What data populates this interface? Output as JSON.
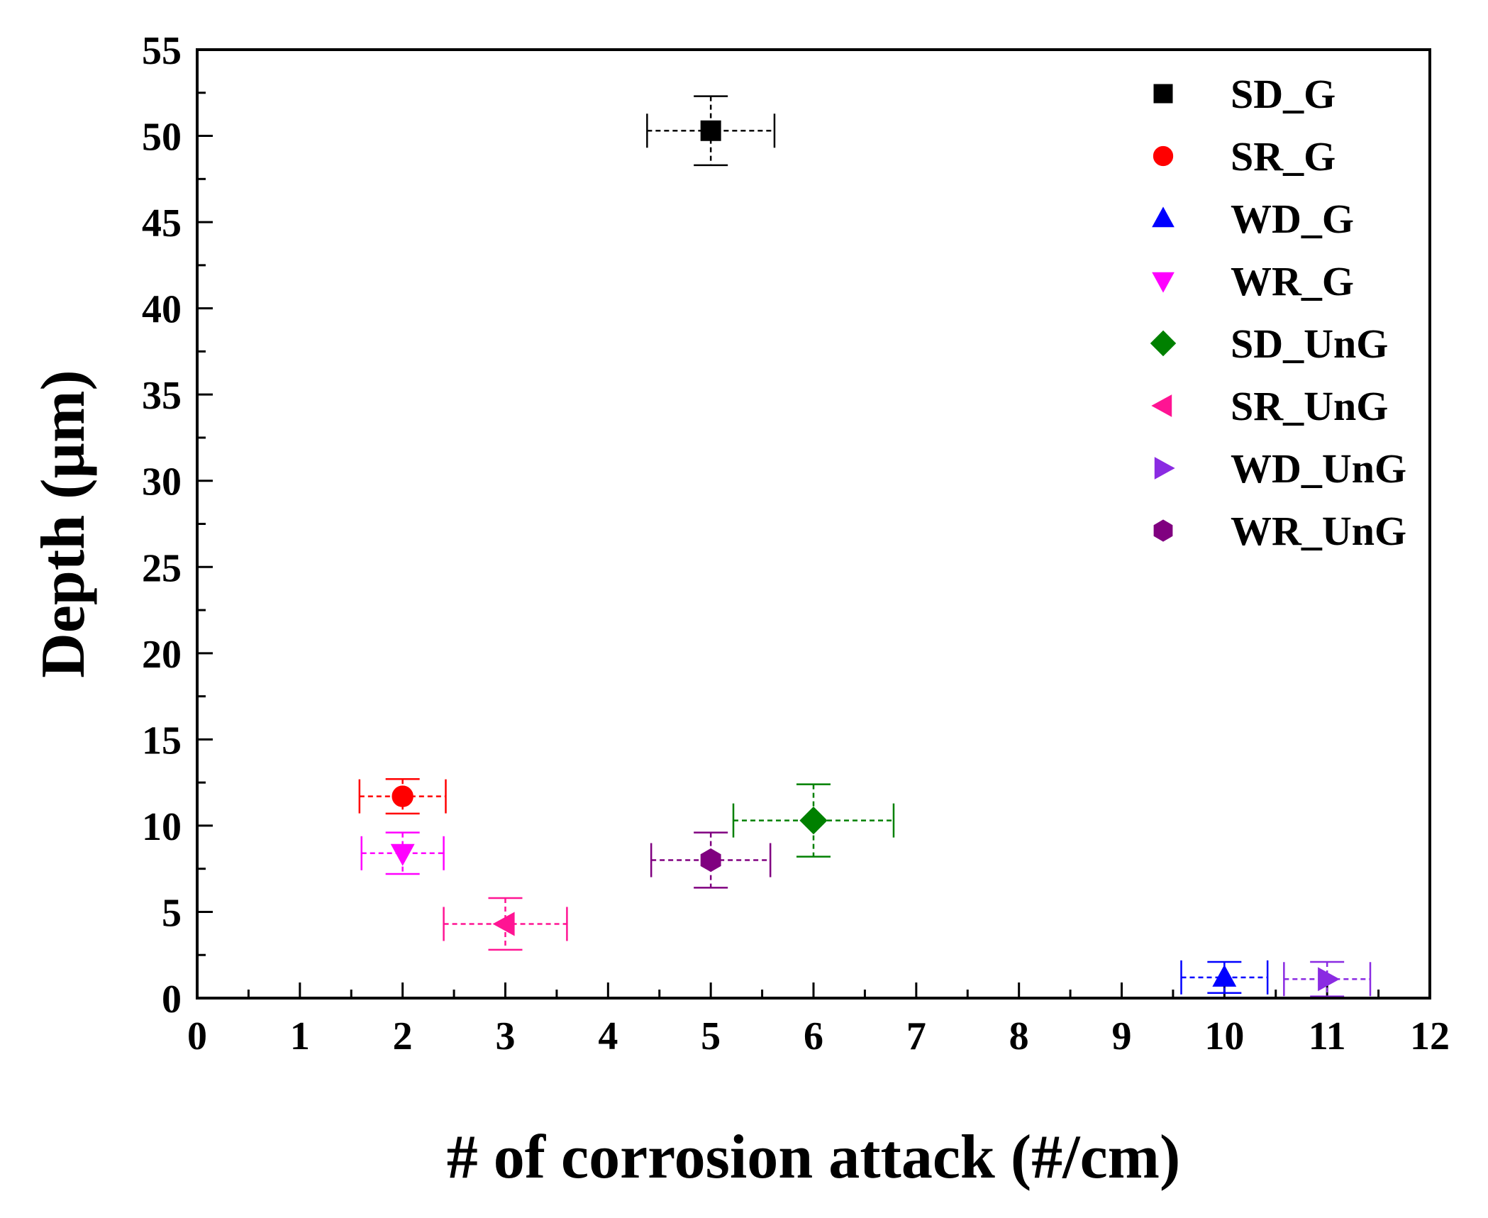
{
  "chart_data": {
    "type": "scatter",
    "title": "",
    "xlabel": "# of corrosion attack (#/cm)",
    "ylabel": "Depth (µm)",
    "xlim": [
      0,
      12
    ],
    "ylim": [
      0,
      55
    ],
    "xticks": [
      0,
      1,
      2,
      3,
      4,
      5,
      6,
      7,
      8,
      9,
      10,
      11,
      12
    ],
    "yticks": [
      0,
      5,
      10,
      15,
      20,
      25,
      30,
      35,
      40,
      45,
      50,
      55
    ],
    "xtick_labels": [
      "0",
      "1",
      "2",
      "3",
      "4",
      "5",
      "6",
      "7",
      "8",
      "9",
      "10",
      "11",
      "12"
    ],
    "ytick_labels": [
      "0",
      "5",
      "10",
      "15",
      "20",
      "25",
      "30",
      "35",
      "40",
      "45",
      "50",
      "55"
    ],
    "legend_position": "top-right",
    "series": [
      {
        "name": "SD_G",
        "color": "#000000",
        "marker": "square",
        "x": 5,
        "y": 50.3,
        "xerr": 0.62,
        "yerr": 2.0
      },
      {
        "name": "SR_G",
        "color": "#ff0000",
        "marker": "circle",
        "x": 2,
        "y": 11.7,
        "xerr": 0.42,
        "yerr": 1.0
      },
      {
        "name": "WD_G",
        "color": "#0000ff",
        "marker": "triangle-up",
        "x": 10,
        "y": 1.2,
        "xerr": 0.42,
        "yerr": 0.9
      },
      {
        "name": "WR_G",
        "color": "#ff00ff",
        "marker": "triangle-down",
        "x": 2,
        "y": 8.4,
        "xerr": 0.4,
        "yerr": 1.2
      },
      {
        "name": "SD_UnG",
        "color": "#008000",
        "marker": "diamond",
        "x": 6,
        "y": 10.3,
        "xerr": 0.78,
        "yerr": 2.1
      },
      {
        "name": "SR_UnG",
        "color": "#ff1493",
        "marker": "triangle-left",
        "x": 3,
        "y": 4.3,
        "xerr": 0.6,
        "yerr": 1.5
      },
      {
        "name": "WD_UnG",
        "color": "#8a2be2",
        "marker": "triangle-right",
        "x": 11,
        "y": 1.1,
        "xerr": 0.42,
        "yerr": 1.0
      },
      {
        "name": "WR_UnG",
        "color": "#800080",
        "marker": "hexagon",
        "x": 5,
        "y": 8.0,
        "xerr": 0.58,
        "yerr": 1.6
      }
    ]
  }
}
